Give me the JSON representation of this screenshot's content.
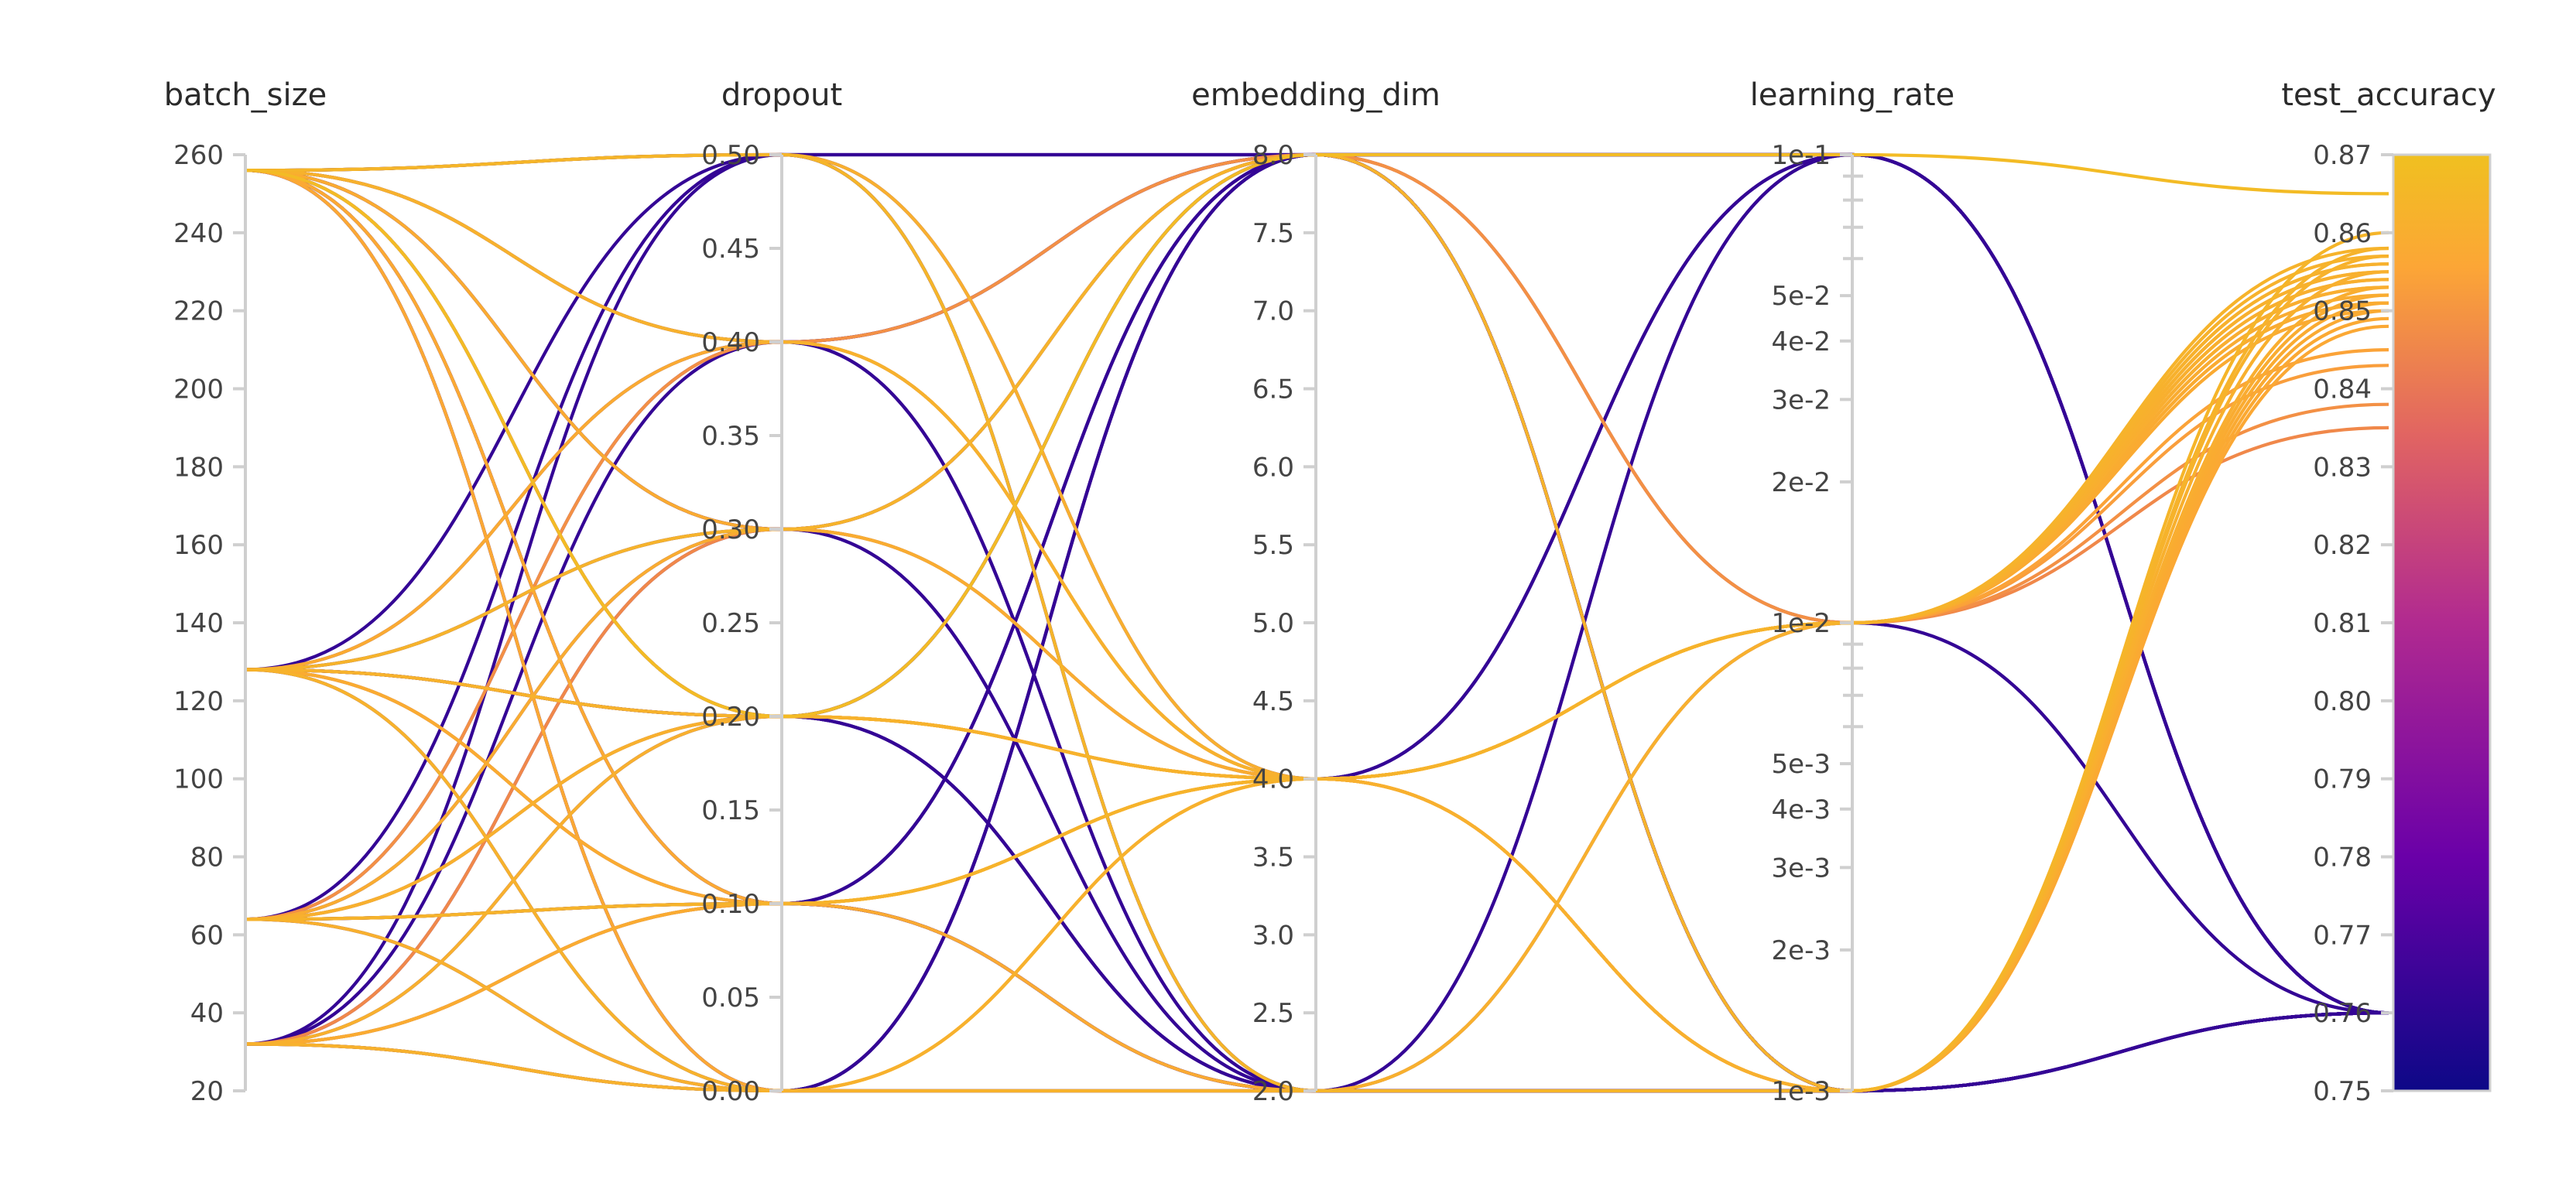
{
  "chart_data": {
    "type": "parallel_coordinates",
    "axes": [
      {
        "name": "batch_size",
        "scale": "linear",
        "range": [
          20,
          260
        ],
        "ticks": [
          260,
          240,
          220,
          200,
          180,
          160,
          140,
          120,
          100,
          80,
          60,
          40,
          20
        ],
        "tick_labels": [
          "260",
          "240",
          "220",
          "200",
          "180",
          "160",
          "140",
          "120",
          "100",
          "80",
          "60",
          "40",
          "20"
        ]
      },
      {
        "name": "dropout",
        "scale": "linear",
        "range": [
          0,
          0.5
        ],
        "ticks": [
          0.5,
          0.45,
          0.4,
          0.35,
          0.3,
          0.25,
          0.2,
          0.15,
          0.1,
          0.05,
          0
        ],
        "tick_labels": [
          "0.50",
          "0.45",
          "0.40",
          "0.35",
          "0.30",
          "0.25",
          "0.20",
          "0.15",
          "0.10",
          "0.05",
          "0.00"
        ]
      },
      {
        "name": "embedding_dim",
        "scale": "linear",
        "range": [
          2,
          8
        ],
        "ticks": [
          8,
          7.5,
          7,
          6.5,
          6,
          5.5,
          5,
          4.5,
          4,
          3.5,
          3,
          2.5,
          2
        ],
        "tick_labels": [
          "8.0",
          "7.5",
          "7.0",
          "6.5",
          "6.0",
          "5.5",
          "5.0",
          "4.5",
          "4.0",
          "3.5",
          "3.0",
          "2.5",
          "2.0"
        ]
      },
      {
        "name": "learning_rate",
        "scale": "log",
        "range": [
          0.001,
          0.1
        ],
        "ticks": [
          0.1,
          0.05,
          0.04,
          0.03,
          0.02,
          0.01,
          0.005,
          0.004,
          0.003,
          0.002,
          0.001
        ],
        "tick_labels": [
          "1e-1",
          "5e-2",
          "4e-2",
          "3e-2",
          "2e-2",
          "1e-2",
          "5e-3",
          "4e-3",
          "3e-3",
          "2e-3",
          "1e-3"
        ],
        "minor_ticks": [
          0.09,
          0.08,
          0.07,
          0.06,
          0.009,
          0.008,
          0.007,
          0.006
        ]
      },
      {
        "name": "test_accuracy",
        "scale": "linear",
        "range": [
          0.75,
          0.87
        ],
        "ticks": [
          0.87,
          0.86,
          0.85,
          0.84,
          0.83,
          0.82,
          0.81,
          0.8,
          0.79,
          0.78,
          0.77,
          0.76,
          0.75
        ],
        "tick_labels": [
          "0.87",
          "0.86",
          "0.85",
          "0.84",
          "0.83",
          "0.82",
          "0.81",
          "0.80",
          "0.79",
          "0.78",
          "0.77",
          "0.76",
          "0.75"
        ]
      }
    ],
    "colorscale": [
      "#0d0887",
      "#6a00a8",
      "#b12a90",
      "#e16462",
      "#fca636",
      "#f0c020"
    ],
    "color_by": "test_accuracy",
    "runs": [
      [
        256,
        0.5,
        8,
        0.1,
        0.76
      ],
      [
        256,
        0.4,
        8,
        0.1,
        0.76
      ],
      [
        256,
        0.3,
        8,
        0.1,
        0.76
      ],
      [
        256,
        0.2,
        8,
        0.1,
        0.76
      ],
      [
        256,
        0.1,
        8,
        0.01,
        0.76
      ],
      [
        256,
        0.0,
        8,
        0.1,
        0.76
      ],
      [
        256,
        0.5,
        2,
        0.01,
        0.76
      ],
      [
        256,
        0.4,
        2,
        0.001,
        0.76
      ],
      [
        256,
        0.3,
        2,
        0.001,
        0.76
      ],
      [
        256,
        0.2,
        2,
        0.001,
        0.76
      ],
      [
        256,
        0.1,
        2,
        0.001,
        0.76
      ],
      [
        256,
        0.0,
        2,
        0.1,
        0.76
      ],
      [
        128,
        0.5,
        4,
        0.1,
        0.76
      ],
      [
        128,
        0.4,
        4,
        0.1,
        0.76
      ],
      [
        128,
        0.3,
        4,
        0.1,
        0.76
      ],
      [
        128,
        0.2,
        2,
        0.1,
        0.76
      ],
      [
        128,
        0.2,
        4,
        0.001,
        0.76
      ],
      [
        128,
        0.2,
        2,
        0.001,
        0.76
      ],
      [
        128,
        0.1,
        8,
        0.001,
        0.76
      ],
      [
        128,
        0.0,
        8,
        0.001,
        0.76
      ],
      [
        64,
        0.5,
        8,
        0.001,
        0.76
      ],
      [
        64,
        0.4,
        2,
        0.001,
        0.76
      ],
      [
        64,
        0.3,
        8,
        0.001,
        0.76
      ],
      [
        64,
        0.2,
        2,
        0.001,
        0.76
      ],
      [
        64,
        0.1,
        8,
        0.001,
        0.76
      ],
      [
        64,
        0.1,
        2,
        0.001,
        0.76
      ],
      [
        64,
        0.0,
        8,
        0.001,
        0.76
      ],
      [
        32,
        0.5,
        2,
        0.001,
        0.76
      ],
      [
        32,
        0.4,
        8,
        0.001,
        0.76
      ],
      [
        32,
        0.3,
        2,
        0.001,
        0.76
      ],
      [
        32,
        0.2,
        8,
        0.001,
        0.76
      ],
      [
        32,
        0.1,
        2,
        0.001,
        0.76
      ],
      [
        32,
        0.0,
        2,
        0.001,
        0.76
      ],
      [
        32,
        0.0,
        8,
        0.001,
        0.76
      ],
      [
        256,
        0.5,
        4,
        0.01,
        0.854
      ],
      [
        256,
        0.4,
        4,
        0.01,
        0.852
      ],
      [
        256,
        0.4,
        4,
        0.01,
        0.856
      ],
      [
        256,
        0.3,
        4,
        0.01,
        0.851
      ],
      [
        128,
        0.2,
        4,
        0.01,
        0.857
      ],
      [
        128,
        0.2,
        4,
        0.01,
        0.853
      ],
      [
        64,
        0.2,
        4,
        0.01,
        0.855
      ],
      [
        64,
        0.1,
        4,
        0.01,
        0.858
      ],
      [
        64,
        0.1,
        4,
        0.01,
        0.854
      ],
      [
        32,
        0.1,
        4,
        0.01,
        0.851
      ],
      [
        32,
        0.0,
        4,
        0.01,
        0.853
      ],
      [
        32,
        0.0,
        4,
        0.01,
        0.856
      ],
      [
        256,
        0.1,
        4,
        0.001,
        0.849
      ],
      [
        128,
        0.1,
        4,
        0.001,
        0.851
      ],
      [
        64,
        0.2,
        4,
        0.001,
        0.853
      ],
      [
        32,
        0.2,
        4,
        0.001,
        0.855
      ],
      [
        256,
        0.0,
        4,
        0.001,
        0.848
      ],
      [
        128,
        0.4,
        4,
        0.001,
        0.85
      ],
      [
        64,
        0.3,
        4,
        0.001,
        0.852
      ],
      [
        256,
        0.5,
        2,
        0.001,
        0.86
      ],
      [
        128,
        0.0,
        2,
        0.001,
        0.857
      ],
      [
        64,
        0.0,
        2,
        0.01,
        0.855
      ],
      [
        32,
        0.1,
        2,
        0.01,
        0.85
      ],
      [
        256,
        0.2,
        8,
        0.1,
        0.865
      ],
      [
        128,
        0.3,
        8,
        0.001,
        0.858
      ],
      [
        64,
        0.4,
        8,
        0.01,
        0.838
      ],
      [
        32,
        0.3,
        8,
        0.01,
        0.835
      ],
      [
        256,
        0.2,
        4,
        0.01,
        0.845
      ],
      [
        128,
        0.1,
        4,
        0.01,
        0.843
      ]
    ]
  }
}
